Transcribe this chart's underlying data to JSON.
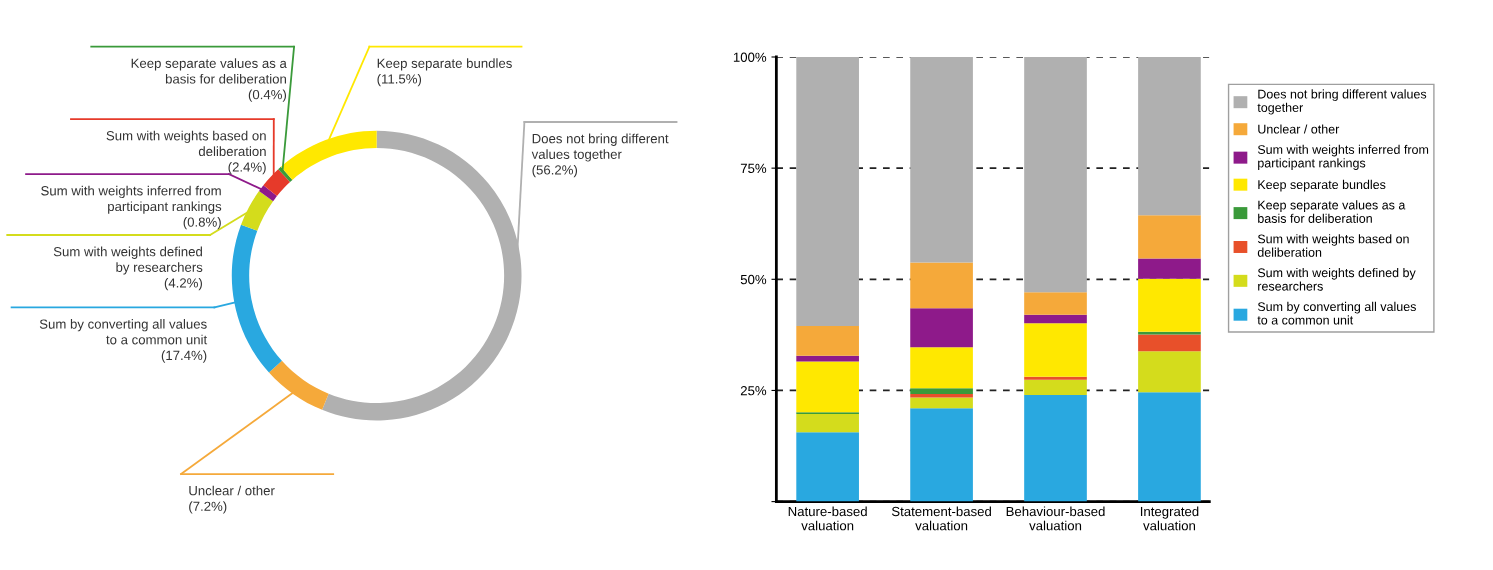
{
  "chart_data": [
    {
      "type": "donut",
      "categories": [
        "Does not bring different\nvalues together",
        "Unclear / other",
        "Sum by converting all values\nto a common unit",
        "Sum with weights defined\nby researchers",
        "Sum with weights inferred from\nparticipant rankings",
        "Sum with weights based on\ndeliberation",
        "Keep separate values as a\nbasis for deliberation",
        "Keep separate bundles"
      ],
      "values": [
        56.2,
        7.2,
        17.4,
        4.2,
        0.8,
        2.4,
        0.4,
        11.5
      ],
      "value_labels": [
        "(56.2%)",
        "(7.2%)",
        "(17.4%)",
        "(4.2%)",
        "(0.8%)",
        "(2.4%)",
        "(0.4%)",
        "(11.5%)"
      ],
      "colors": [
        "#b0b0b0",
        "#f5a93a",
        "#29a8e0",
        "#d4dc1c",
        "#8e1a8a",
        "#e63a2a",
        "#3a9a3a",
        "#ffe800"
      ]
    },
    {
      "type": "bar",
      "stacked": true,
      "categories": [
        "Nature-based\nvaluation",
        "Statement-based\nvaluation",
        "Behaviour-based\nvaluation",
        "Integrated\nvaluation"
      ],
      "series": [
        {
          "name": "Sum by converting all values\nto a common unit",
          "color": "#29a8e0",
          "values": [
            15.6,
            21.0,
            24.0,
            24.6
          ]
        },
        {
          "name": "Sum with weights defined by\nresearchers",
          "color": "#d4dc1c",
          "values": [
            4.1,
            2.4,
            3.4,
            9.2
          ]
        },
        {
          "name": "Sum with weights based on\ndeliberation",
          "color": "#e8502a",
          "values": [
            0,
            0.8,
            0.7,
            3.8
          ]
        },
        {
          "name": "Keep separate values as a\nbasis for deliberation",
          "color": "#3a9a3a",
          "values": [
            0.4,
            1.3,
            0,
            0.6
          ]
        },
        {
          "name": "Keep separate bundles",
          "color": "#ffe800",
          "values": [
            11.4,
            9.2,
            12.0,
            11.9
          ]
        },
        {
          "name": "Sum with weights inferred from\nparticipant rankings",
          "color": "#8e1a8a",
          "values": [
            1.3,
            8.8,
            1.9,
            4.6
          ]
        },
        {
          "name": "Unclear / other",
          "color": "#f5a93a",
          "values": [
            6.7,
            10.3,
            5.1,
            9.7
          ]
        },
        {
          "name": "Does not bring different values\ntogether",
          "color": "#b0b0b0",
          "values": [
            60.5,
            46.2,
            52.9,
            35.6
          ]
        }
      ],
      "ylim": [
        0,
        100
      ],
      "yticks": [
        {
          "value": 0,
          "label": null
        },
        {
          "value": 25,
          "label": "25%"
        },
        {
          "value": 50,
          "label": "50%"
        },
        {
          "value": 75,
          "label": "75%"
        },
        {
          "value": 100,
          "label": "100%"
        }
      ],
      "grid": "y",
      "line_style": "dashed",
      "legend": "right"
    }
  ]
}
